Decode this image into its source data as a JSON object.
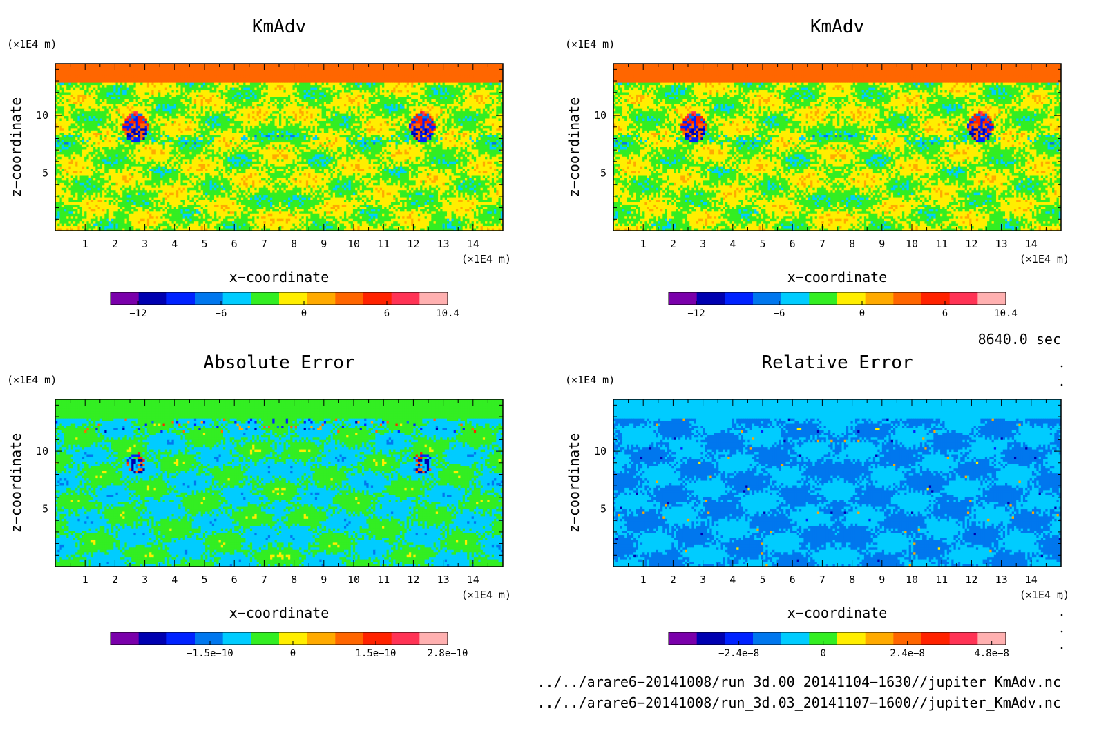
{
  "chart_data": [
    {
      "type": "heatmap",
      "title": "KmAdv",
      "xlabel": "x−coordinate",
      "ylabel": "z−coordinate",
      "x_unit": "(×1E4 m)",
      "y_unit": "(×1E4 m)",
      "xlim": [
        0,
        15
      ],
      "ylim": [
        0,
        14.5
      ],
      "x_ticks": [
        "1",
        "2",
        "3",
        "4",
        "5",
        "6",
        "7",
        "8",
        "9",
        "10",
        "11",
        "12",
        "13",
        "14"
      ],
      "y_ticks": [
        "5",
        "10"
      ],
      "colorbar_ticks": [
        {
          "label": "−12",
          "value": -12
        },
        {
          "label": "−6",
          "value": -6
        },
        {
          "label": "0",
          "value": 0
        },
        {
          "label": "6",
          "value": 6
        },
        {
          "label": "10.4",
          "value": 10.4
        }
      ],
      "colorbar_range": [
        -14,
        10.4
      ],
      "top_band_level": 8,
      "structure": "kmadv"
    },
    {
      "type": "heatmap",
      "title": "KmAdv",
      "xlabel": "x−coordinate",
      "ylabel": "z−coordinate",
      "x_unit": "(×1E4 m)",
      "y_unit": "(×1E4 m)",
      "xlim": [
        0,
        15
      ],
      "ylim": [
        0,
        14.5
      ],
      "x_ticks": [
        "1",
        "2",
        "3",
        "4",
        "5",
        "6",
        "7",
        "8",
        "9",
        "10",
        "11",
        "12",
        "13",
        "14"
      ],
      "y_ticks": [
        "5",
        "10"
      ],
      "colorbar_ticks": [
        {
          "label": "−12",
          "value": -12
        },
        {
          "label": "−6",
          "value": -6
        },
        {
          "label": "0",
          "value": 0
        },
        {
          "label": "6",
          "value": 6
        },
        {
          "label": "10.4",
          "value": 10.4
        }
      ],
      "colorbar_range": [
        -14,
        10.4
      ],
      "top_band_level": 8,
      "structure": "kmadv"
    },
    {
      "type": "heatmap",
      "title": "Absolute Error",
      "xlabel": "x−coordinate",
      "ylabel": "z−coordinate",
      "x_unit": "(×1E4 m)",
      "y_unit": "(×1E4 m)",
      "xlim": [
        0,
        15
      ],
      "ylim": [
        0,
        14.5
      ],
      "x_ticks": [
        "1",
        "2",
        "3",
        "4",
        "5",
        "6",
        "7",
        "8",
        "9",
        "10",
        "11",
        "12",
        "13",
        "14"
      ],
      "y_ticks": [
        "5",
        "10"
      ],
      "colorbar_ticks": [
        {
          "label": "−1.5e−10",
          "value": -1.5e-10
        },
        {
          "label": "0",
          "value": 0
        },
        {
          "label": "1.5e−10",
          "value": 1.5e-10
        },
        {
          "label": "2.8e−10",
          "value": 2.8e-10
        }
      ],
      "colorbar_range": [
        -3.3e-10,
        2.8e-10
      ],
      "top_band_level": 5,
      "structure": "abs"
    },
    {
      "type": "heatmap",
      "title": "Relative Error",
      "xlabel": "x−coordinate",
      "ylabel": "z−coordinate",
      "x_unit": "(×1E4 m)",
      "y_unit": "(×1E4 m)",
      "xlim": [
        0,
        15
      ],
      "ylim": [
        0,
        14.5
      ],
      "x_ticks": [
        "1",
        "2",
        "3",
        "4",
        "5",
        "6",
        "7",
        "8",
        "9",
        "10",
        "11",
        "12",
        "13",
        "14"
      ],
      "y_ticks": [
        "5",
        "10"
      ],
      "colorbar_ticks": [
        {
          "label": "−2.4e−8",
          "value": -2.4e-08
        },
        {
          "label": "0",
          "value": 0
        },
        {
          "label": "2.4e−8",
          "value": 2.4e-08
        },
        {
          "label": "4.8e−8",
          "value": 4.8e-08
        }
      ],
      "colorbar_range": [
        -4.4e-08,
        5.2e-08
      ],
      "top_band_level": 4,
      "structure": "rel"
    }
  ],
  "colormap": [
    "#7a00aa",
    "#0000b0",
    "#0022ff",
    "#0077ee",
    "#00ccff",
    "#33ee22",
    "#ffee00",
    "#ffaa00",
    "#ff6600",
    "#ff2200",
    "#ff3355",
    "#ffb0b0"
  ],
  "time_label": "8640.0 sec",
  "file_paths": [
    "../../arare6−20141008/run_3d.00_20141104−1630//jupiter_KmAdv.nc",
    "../../arare6−20141008/run_3d.03_20141107−1600//jupiter_KmAdv.nc"
  ]
}
